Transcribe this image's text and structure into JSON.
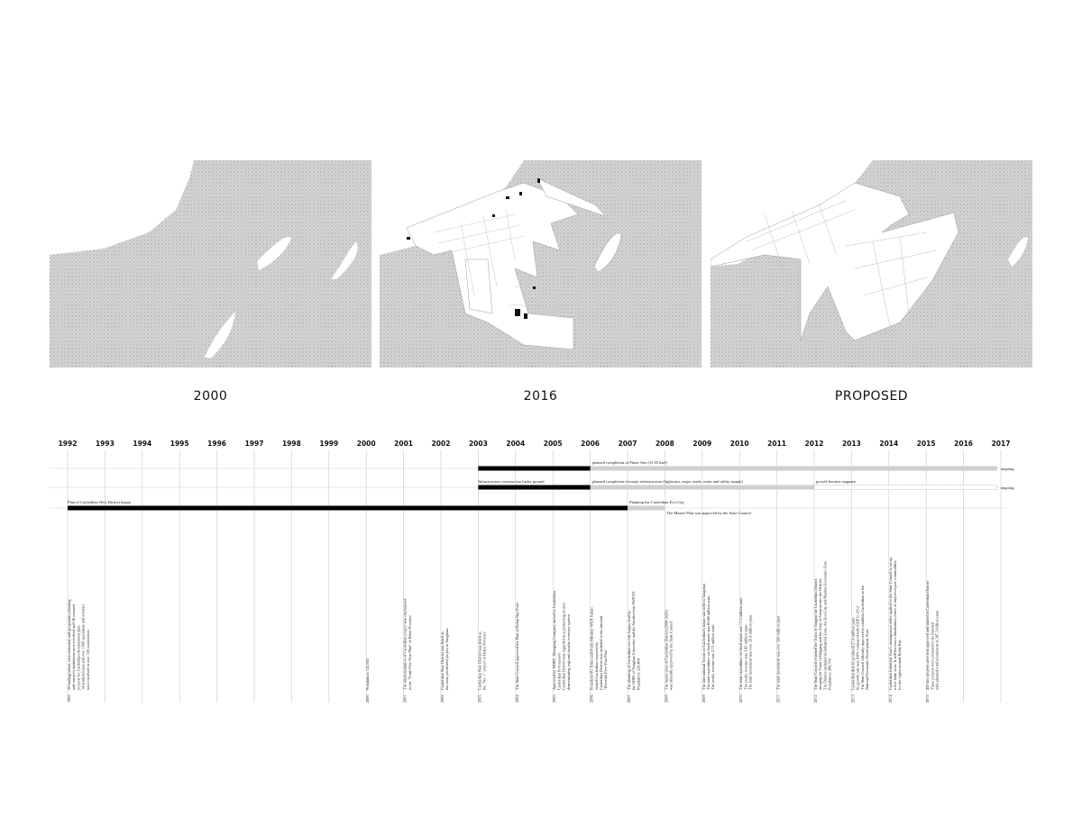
{
  "maps": [
    {
      "label": "2000"
    },
    {
      "label": "2016"
    },
    {
      "label": "PROPOSED"
    }
  ],
  "timeline": {
    "years": [
      "1992",
      "1993",
      "1994",
      "1995",
      "1996",
      "1997",
      "1998",
      "1999",
      "2000",
      "2001",
      "2002",
      "2003",
      "2004",
      "2005",
      "2006",
      "2007",
      "2008",
      "2009",
      "2010",
      "2011",
      "2012",
      "2013",
      "2014",
      "2015",
      "2016",
      "2017"
    ],
    "bars": [
      {
        "id": "phase-one",
        "start": 2003,
        "solid_end": 2006,
        "grey_end": 2016.9,
        "label_start": "",
        "label_after": "planned completion of Phase One (31.95 km²)",
        "end_label": "ongoing",
        "row": 0
      },
      {
        "id": "infrastructure",
        "start": 2003,
        "solid_end": 2006,
        "grey_end": 2016.9,
        "label_start": "Infrastructure construction broke ground",
        "label_after": "planned completion of major infrastructure (highways, major roads, water and utility supply)",
        "end_label": "ongoing",
        "row": 1,
        "stagnant_from": 2012,
        "stagnant_label": "growth became stagnant"
      },
      {
        "id": "plan",
        "start": 1992,
        "solid_end": 2007,
        "grey_end": 2008,
        "label_start": "Plan of Caofeidian New District began",
        "label_after": "Planning the Caofeidian Eco-City",
        "label_after2": "The Master Plan was approved by the State Council",
        "row": 2
      }
    ],
    "notes": [
      {
        "year": "1992",
        "text": [
          "20 leading urban, environmental, and geographic planning",
          "and research institutions were involved and 36 research",
          "projects for Caofeidian development plan.",
          "14 academicians and over 1000 specialists and scholars",
          "were involved in over 100 conferences"
        ]
      },
      {
        "year": "2000",
        "text": [
          "Population: 135,943"
        ]
      },
      {
        "year": "2001",
        "text": [
          "The implementation of Caofeidian project was emphasized",
          "in the \"Tenth Five-Year Plan\" of Hebei Province"
        ]
      },
      {
        "year": "2002",
        "text": [
          "Caofeidian New District was listed as",
          "the most prioritized project in Tangshan"
        ]
      },
      {
        "year": "2003",
        "text": [
          "Caofeidian New District was listed as",
          "the \"No. 1\" project in Hebei Province"
        ]
      },
      {
        "year": "2004",
        "text": [
          "The State Council approved the Plan of Bohai Bay Ports"
        ]
      },
      {
        "year": "2005",
        "text": [
          "Approved by NDRC, Shougang Company moved to Caofeidian",
          "Caofeidian Port opened",
          "Caofeidian District was regarded as a pioneering project",
          "demonstrating regional circular economy system"
        ]
      },
      {
        "year": "2006",
        "text": [
          "President HU Jintao and Prime Minister WEN Jiabao",
          "visited Caofeidian respectively",
          "Caofeidian District was included in the national",
          "\"Eleventh Five-Year Plan\""
        ]
      },
      {
        "year": "2007",
        "text": [
          "The planning of Caofeidian eco-city began, lead by",
          "the SDRI of Tsinghua University and the Sweden firm SWECO",
          "Population: 220,484"
        ]
      },
      {
        "year": "2008",
        "text": [
          "The master plan of Caofeidian District (2008-2020)",
          "was officially approved by the State Council"
        ]
      },
      {
        "year": "2009",
        "text": [
          "The international forum on Caofeidian's future was held in Tangshan",
          "The total expenditure on fixed assets was 65.66 million yuan",
          "The yearly revenue was 2.73 million yuan"
        ]
      },
      {
        "year": "2010",
        "text": [
          "The total expenditure on fixed assets was 71.3 million yuan",
          "The yearly revenue was 3.45 million yuan",
          "The total investment was over 20.4 million yuan"
        ]
      },
      {
        "year": "2011",
        "text": [
          "The total investment was over 300 million yuan"
        ]
      },
      {
        "year": "2012",
        "text": [
          "The State Council renamed the Town of Tanghai the Caofeidian District",
          "merging the Town of Haigang and the Zone of Jianwan into the District.",
          "The District included an Industrial Zone, the Eco-City and Nanbao Economic Zone",
          "Population: 268,700"
        ]
      },
      {
        "year": "2013",
        "text": [
          "Caofeidian district produced 27.4 million yuan",
          "Its growth rate was 8.6% compared with GDP in 2012",
          "The State Council officially approved to establish Caofeidian as the",
          "National Economic Development Zone"
        ]
      },
      {
        "year": "2014",
        "text": [
          "Caofeidian Industrial Zone's management office applied to the State Council to set up",
          "a free trade zone. It will become a distribution center of import-export commodities",
          "for the region around Bohai Bay"
        ]
      },
      {
        "year": "2015",
        "text": [
          "450 key projects were first approved and started in Caofeidian District",
          "These projects were prepared to be finished",
          "with planned total investment of 267.3 billion yuan"
        ]
      }
    ]
  }
}
